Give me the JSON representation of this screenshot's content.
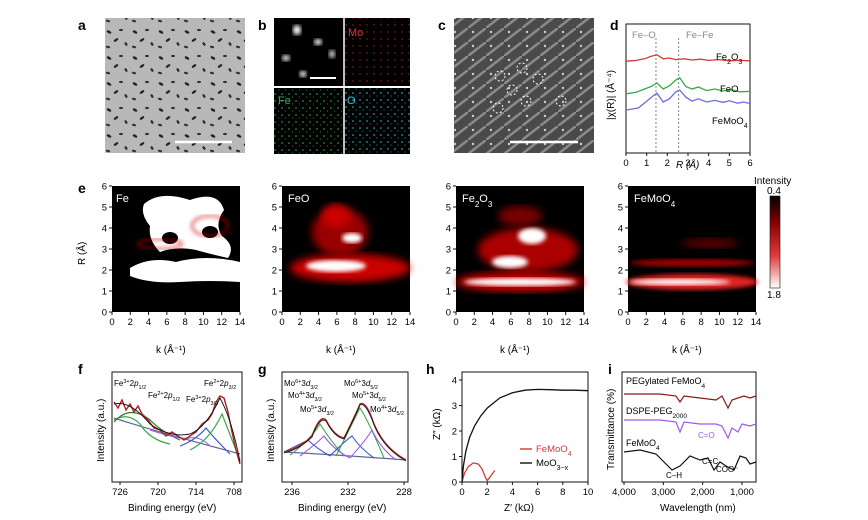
{
  "panel_letters": {
    "a": "a",
    "b": "b",
    "c": "c",
    "d": "d",
    "e": "e",
    "f": "f",
    "g": "g",
    "h": "h",
    "i": "i"
  },
  "colors": {
    "blue": "#6a6ee0",
    "green": "#3aa84a",
    "red": "#d43a3a",
    "purple": "#9b5de5",
    "black": "#111111",
    "brown": "#8a1a1a"
  },
  "panel_b": {
    "mo": "Mo",
    "fe": "Fe",
    "o": "O"
  },
  "chart_data": [
    {
      "id": "d",
      "type": "line",
      "xlabel": "R (Å)",
      "ylabel": "|χ(R)| (Å⁻⁴)",
      "xlim": [
        0,
        6
      ],
      "xticks": [
        "0",
        "1",
        "2",
        "3",
        "4",
        "5",
        "6"
      ],
      "annotations": {
        "feo_bond": "Fe–O",
        "fefe_bond": "Fe–Fe"
      },
      "ref_lines_x": [
        1.45,
        2.55
      ],
      "series": [
        {
          "name": "Fe2O3",
          "label_base": "Fe",
          "label_sub": "2",
          "label_mid": "O",
          "label_sub2": "3",
          "color": "#6a6ee0",
          "x": [
            0.0,
            0.6,
            1.0,
            1.3,
            1.5,
            1.8,
            2.1,
            2.4,
            2.6,
            2.9,
            3.2,
            3.5,
            3.9,
            4.3,
            4.7,
            5.0,
            5.4,
            5.7,
            6.0
          ],
          "y": [
            0.5,
            0.55,
            0.72,
            0.85,
            0.92,
            0.7,
            0.78,
            0.95,
            1.0,
            0.82,
            0.72,
            0.78,
            0.7,
            0.74,
            0.69,
            0.73,
            0.67,
            0.7,
            0.66
          ]
        },
        {
          "name": "FeO",
          "color": "#3aa84a",
          "x": [
            0.0,
            0.5,
            0.9,
            1.2,
            1.5,
            1.8,
            2.1,
            2.4,
            2.6,
            2.9,
            3.2,
            3.5,
            3.9,
            4.3,
            4.7,
            5.1,
            5.5,
            6.0
          ],
          "y": [
            0.28,
            0.32,
            0.4,
            0.46,
            0.55,
            0.4,
            0.48,
            0.62,
            0.68,
            0.46,
            0.4,
            0.45,
            0.36,
            0.4,
            0.35,
            0.38,
            0.33,
            0.34
          ]
        },
        {
          "name": "FeMoO4",
          "label_base": "FeMoO",
          "label_sub": "4",
          "color": "#d43a3a",
          "x": [
            0.0,
            0.5,
            0.9,
            1.2,
            1.5,
            1.8,
            2.1,
            2.4,
            2.8,
            3.2,
            3.6,
            4.0,
            4.5,
            5.0,
            5.5,
            6.0
          ],
          "y": [
            0.02,
            0.04,
            0.08,
            0.14,
            0.18,
            0.08,
            0.1,
            0.06,
            0.08,
            0.05,
            0.07,
            0.04,
            0.06,
            0.03,
            0.04,
            0.03
          ]
        }
      ]
    },
    {
      "id": "e",
      "type": "heatmap",
      "xlabel": "k (Å⁻¹)",
      "ylabel": "R (Å)",
      "xticks": [
        "0",
        "2",
        "4",
        "6",
        "8",
        "10",
        "12",
        "14"
      ],
      "yticks": [
        "0",
        "1",
        "2",
        "3",
        "4",
        "5",
        "6"
      ],
      "colorbar": {
        "title": "Intensity",
        "max": "0.4",
        "min": "1.8"
      },
      "maps": [
        {
          "name": "Fe",
          "label_base": "Fe"
        },
        {
          "name": "FeO",
          "label_base": "FeO"
        },
        {
          "name": "Fe2O3",
          "label_base": "Fe",
          "label_sub": "2",
          "label_mid": "O",
          "label_sub2": "3"
        },
        {
          "name": "FeMoO4",
          "label_base": "FeMoO",
          "label_sub": "4"
        }
      ]
    },
    {
      "id": "f",
      "type": "line",
      "xlabel": "Binding energy (eV)",
      "ylabel": "Intensity (a.u.)",
      "xlim": [
        728,
        705
      ],
      "xticks": [
        "726",
        "720",
        "714",
        "708"
      ],
      "peaks": [
        {
          "pre": "Fe",
          "sup": "3+",
          "mid": "2",
          "it": "p",
          "sub": "1/2"
        },
        {
          "pre": "Fe",
          "sup": "2+",
          "mid": "2",
          "it": "p",
          "sub": "1/2"
        },
        {
          "pre": "Fe",
          "sup": "3+",
          "mid": "2",
          "it": "p",
          "sub": "3/2"
        },
        {
          "pre": "Fe",
          "sup": "2+",
          "mid": "2",
          "it": "p",
          "sub": "3/2"
        }
      ]
    },
    {
      "id": "g",
      "type": "line",
      "xlabel": "Binding energy (eV)",
      "ylabel": "Intensity (a.u.)",
      "xlim": [
        238,
        228
      ],
      "xticks": [
        "236",
        "232",
        "228"
      ],
      "peaks": [
        {
          "pre": "Mo",
          "sup": "6+",
          "mid": "3",
          "it": "d",
          "sub": "3/2"
        },
        {
          "pre": "Mo",
          "sup": "4+",
          "mid": "3",
          "it": "d",
          "sub": "3/2"
        },
        {
          "pre": "Mo",
          "sup": "5+",
          "mid": "3",
          "it": "d",
          "sub": "3/2"
        },
        {
          "pre": "Mo",
          "sup": "6+",
          "mid": "3",
          "it": "d",
          "sub": "5/2"
        },
        {
          "pre": "Mo",
          "sup": "5+",
          "mid": "3",
          "it": "d",
          "sub": "5/2"
        },
        {
          "pre": "Mo",
          "sup": "4+",
          "mid": "3",
          "it": "d",
          "sub": "5/2"
        }
      ]
    },
    {
      "id": "h",
      "type": "line",
      "xlabel": "Z′ (kΩ)",
      "ylabel": "Z″ (kΩ)",
      "xlim": [
        0,
        10
      ],
      "ylim": [
        0,
        4
      ],
      "xticks": [
        "0",
        "2",
        "4",
        "6",
        "8",
        "10"
      ],
      "yticks": [
        "0",
        "1",
        "2",
        "3",
        "4"
      ],
      "series": [
        {
          "name": "FeMoO4",
          "label_base": "FeMoO",
          "label_sub": "4",
          "color": "#d43a3a",
          "x": [
            0.0,
            0.2,
            0.5,
            0.9,
            1.3,
            1.6,
            1.8,
            2.0,
            2.3,
            2.6
          ],
          "y": [
            0.0,
            0.35,
            0.6,
            0.75,
            0.7,
            0.5,
            0.25,
            0.05,
            0.25,
            0.45
          ]
        },
        {
          "name": "MoO3−x",
          "label_base": "MoO",
          "label_sub": "3−x",
          "color": "#111111",
          "x": [
            0.0,
            0.1,
            0.3,
            0.6,
            1.0,
            1.5,
            2.0,
            3.0,
            4.0,
            5.0,
            6.0,
            7.0,
            8.0,
            9.0,
            10.0
          ],
          "y": [
            0.0,
            0.6,
            1.2,
            1.75,
            2.2,
            2.6,
            2.9,
            3.3,
            3.5,
            3.6,
            3.63,
            3.62,
            3.6,
            3.6,
            3.58
          ]
        }
      ]
    },
    {
      "id": "i",
      "type": "line",
      "xlabel": "Wavelength (nm)",
      "ylabel": "Transmittance (%)",
      "xticks": [
        "4,000",
        "3,000",
        "2,000",
        "1,000"
      ],
      "labels": {
        "peg": {
          "base": "PEGylated FeMoO",
          "sub": "4"
        },
        "dspe": {
          "base": "DSPE-PEG",
          "sub": "2000"
        },
        "fmo": {
          "base": "FeMoO",
          "sub": "4"
        },
        "cc": "C=C",
        "co": "C=O",
        "coo": "COO⁻",
        "ch": "C–H"
      }
    }
  ]
}
